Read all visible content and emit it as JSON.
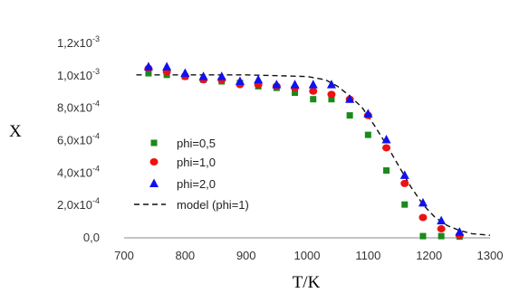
{
  "chart_data": {
    "type": "scatter",
    "xlabel": "T/K",
    "ylabel": "X",
    "xlim": [
      700,
      1300
    ],
    "ylim": [
      0,
      0.0012
    ],
    "x_ticks": [
      700,
      800,
      900,
      1000,
      1100,
      1200,
      1300
    ],
    "x_tick_labels": [
      "700",
      "800",
      "900",
      "1000",
      "1100",
      "1200",
      "1300"
    ],
    "y_ticks": [
      {
        "value": 0,
        "mantissa": "0,0",
        "exp": ""
      },
      {
        "value": 0.0002,
        "mantissa": "2,0x10",
        "exp": "-4"
      },
      {
        "value": 0.0004,
        "mantissa": "4,0x10",
        "exp": "-4"
      },
      {
        "value": 0.0006,
        "mantissa": "6,0x10",
        "exp": "-4"
      },
      {
        "value": 0.0008,
        "mantissa": "8,0x10",
        "exp": "-4"
      },
      {
        "value": 0.001,
        "mantissa": "1,0x10",
        "exp": "-3"
      },
      {
        "value": 0.0012,
        "mantissa": "1,2x10",
        "exp": "-3"
      }
    ],
    "grid": false,
    "legend_position": "lower-left",
    "series": [
      {
        "name": "phi=0,5",
        "marker": "square",
        "color": "#1a8a1a",
        "x": [
          740,
          770,
          800,
          830,
          860,
          890,
          920,
          950,
          980,
          1010,
          1040,
          1070,
          1100,
          1130,
          1160,
          1190,
          1220,
          1250
        ],
        "y": [
          0.00101,
          0.001,
          0.00099,
          0.00097,
          0.00096,
          0.00095,
          0.00093,
          0.00092,
          0.00089,
          0.00085,
          0.00085,
          0.00075,
          0.00063,
          0.00041,
          0.0002,
          5e-06,
          5e-06,
          2e-06
        ]
      },
      {
        "name": "phi=1,0",
        "marker": "circle",
        "color": "#ee1111",
        "x": [
          740,
          770,
          800,
          830,
          860,
          890,
          920,
          950,
          980,
          1010,
          1040,
          1070,
          1100,
          1130,
          1160,
          1190,
          1220,
          1250
        ],
        "y": [
          0.00104,
          0.00102,
          0.00099,
          0.00097,
          0.00097,
          0.00094,
          0.00094,
          0.00093,
          0.00092,
          0.0009,
          0.00088,
          0.00085,
          0.00075,
          0.00055,
          0.00033,
          0.00012,
          5e-05,
          1e-05
        ]
      },
      {
        "name": "phi=2,0",
        "marker": "triangle",
        "color": "#1111ee",
        "x": [
          740,
          770,
          800,
          830,
          860,
          890,
          920,
          950,
          980,
          1010,
          1040,
          1070,
          1100,
          1130,
          1160,
          1190,
          1220,
          1250
        ],
        "y": [
          0.00105,
          0.00105,
          0.00101,
          0.00099,
          0.00099,
          0.00096,
          0.00097,
          0.00094,
          0.00094,
          0.00094,
          0.00094,
          0.00085,
          0.00076,
          0.0006,
          0.00038,
          0.00021,
          0.0001,
          3e-05
        ]
      },
      {
        "name": "model (phi=1)",
        "marker": "dashed-line",
        "color": "#111111",
        "x": [
          720,
          800,
          900,
          1000,
          1030,
          1050,
          1070,
          1090,
          1110,
          1130,
          1150,
          1170,
          1190,
          1210,
          1230,
          1250,
          1270,
          1300
        ],
        "y": [
          0.001,
          0.001,
          0.001,
          0.00099,
          0.00097,
          0.00093,
          0.00087,
          0.0008,
          0.00069,
          0.00057,
          0.00044,
          0.00031,
          0.0002,
          0.00012,
          7e-05,
          4e-05,
          2e-05,
          1e-05
        ]
      }
    ]
  }
}
